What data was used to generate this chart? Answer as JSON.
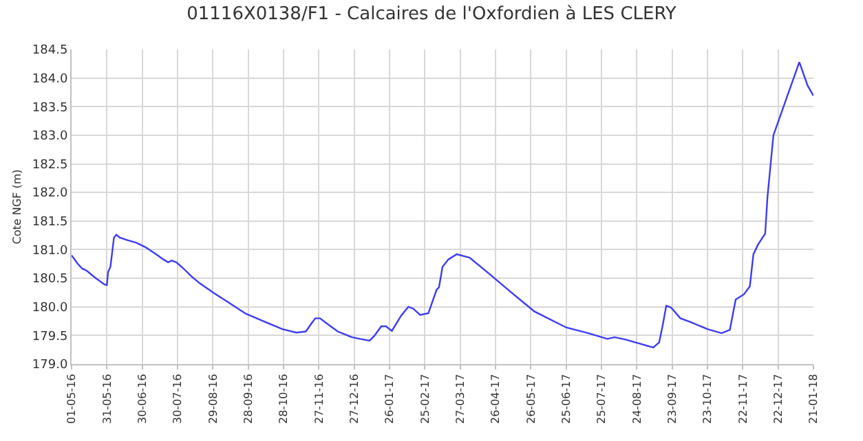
{
  "chart_data": {
    "type": "line",
    "title": "01116X0138/F1 - Calcaires de l'Oxfordien à LES CLERY",
    "ylabel": "Cote NGF (m)",
    "x": [
      "2016-05-01",
      "2016-05-06",
      "2016-05-10",
      "2016-05-14",
      "2016-05-21",
      "2016-05-29",
      "2016-05-31",
      "2016-06-01",
      "2016-06-03",
      "2016-06-06",
      "2016-06-08",
      "2016-06-11",
      "2016-06-17",
      "2016-06-25",
      "2016-07-03",
      "2016-07-11",
      "2016-07-18",
      "2016-07-22",
      "2016-07-25",
      "2016-07-29",
      "2016-08-03",
      "2016-08-11",
      "2016-08-18",
      "2016-08-30",
      "2016-09-11",
      "2016-09-26",
      "2016-10-12",
      "2016-10-27",
      "2016-11-08",
      "2016-11-16",
      "2016-11-20",
      "2016-11-24",
      "2016-11-28",
      "2016-12-05",
      "2016-12-13",
      "2016-12-25",
      "2017-01-01",
      "2017-01-09",
      "2017-01-13",
      "2017-01-19",
      "2017-01-23",
      "2017-01-28",
      "2017-02-05",
      "2017-02-11",
      "2017-02-15",
      "2017-02-21",
      "2017-02-28",
      "2017-03-07",
      "2017-03-09",
      "2017-03-12",
      "2017-03-17",
      "2017-03-24",
      "2017-04-04",
      "2017-04-20",
      "2017-05-09",
      "2017-05-29",
      "2017-06-25",
      "2017-07-14",
      "2017-07-30",
      "2017-08-05",
      "2017-08-14",
      "2017-09-07",
      "2017-09-12",
      "2017-09-15",
      "2017-09-18",
      "2017-09-22",
      "2017-09-30",
      "2017-10-08",
      "2017-10-23",
      "2017-11-04",
      "2017-11-11",
      "2017-11-16",
      "2017-11-23",
      "2017-11-28",
      "2017-12-01",
      "2017-12-05",
      "2017-12-11",
      "2017-12-13",
      "2017-12-18",
      "2018-01-09",
      "2018-01-16",
      "2018-01-21"
    ],
    "series": [
      {
        "color": "#3b3bf5",
        "values": [
          180.9,
          180.76,
          180.67,
          180.63,
          180.51,
          180.39,
          180.38,
          180.61,
          180.7,
          181.21,
          181.26,
          181.21,
          181.17,
          181.12,
          181.04,
          180.93,
          180.83,
          180.78,
          180.81,
          180.78,
          180.69,
          180.53,
          180.41,
          180.24,
          180.08,
          179.88,
          179.74,
          179.61,
          179.55,
          179.57,
          179.69,
          179.8,
          179.8,
          179.69,
          179.57,
          179.47,
          179.44,
          179.41,
          179.49,
          179.66,
          179.66,
          179.58,
          179.85,
          180.0,
          179.97,
          179.86,
          179.89,
          180.3,
          180.34,
          180.7,
          180.83,
          180.92,
          180.86,
          180.59,
          180.26,
          179.92,
          179.64,
          179.54,
          179.44,
          179.47,
          179.43,
          179.29,
          179.38,
          179.68,
          180.02,
          179.99,
          179.8,
          179.74,
          179.61,
          179.54,
          179.6,
          180.13,
          180.22,
          180.36,
          180.92,
          181.09,
          181.28,
          181.93,
          183.0,
          184.28,
          183.87,
          183.69
        ]
      }
    ],
    "xlim": [
      "2016-05-01",
      "2018-01-21"
    ],
    "xticks": [
      {
        "value": "2016-05-01",
        "label": "01-05-16"
      },
      {
        "value": "2016-05-31",
        "label": "31-05-16"
      },
      {
        "value": "2016-06-30",
        "label": "30-06-16"
      },
      {
        "value": "2016-07-30",
        "label": "30-07-16"
      },
      {
        "value": "2016-08-29",
        "label": "29-08-16"
      },
      {
        "value": "2016-09-28",
        "label": "28-09-16"
      },
      {
        "value": "2016-10-28",
        "label": "28-10-16"
      },
      {
        "value": "2016-11-27",
        "label": "27-11-16"
      },
      {
        "value": "2016-12-27",
        "label": "27-12-16"
      },
      {
        "value": "2017-01-26",
        "label": "26-01-17"
      },
      {
        "value": "2017-02-25",
        "label": "25-02-17"
      },
      {
        "value": "2017-03-27",
        "label": "27-03-17"
      },
      {
        "value": "2017-04-26",
        "label": "26-04-17"
      },
      {
        "value": "2017-05-26",
        "label": "26-05-17"
      },
      {
        "value": "2017-06-25",
        "label": "25-06-17"
      },
      {
        "value": "2017-07-25",
        "label": "25-07-17"
      },
      {
        "value": "2017-08-24",
        "label": "24-08-17"
      },
      {
        "value": "2017-09-23",
        "label": "23-09-17"
      },
      {
        "value": "2017-10-23",
        "label": "23-10-17"
      },
      {
        "value": "2017-11-22",
        "label": "22-11-17"
      },
      {
        "value": "2017-12-22",
        "label": "22-12-17"
      },
      {
        "value": "2018-01-21",
        "label": "21-01-18"
      }
    ],
    "ylim": [
      179.0,
      184.5
    ],
    "yticks": [
      {
        "value": 179.0,
        "label": "179.0"
      },
      {
        "value": 179.5,
        "label": "179.5"
      },
      {
        "value": 180.0,
        "label": "180.0"
      },
      {
        "value": 180.5,
        "label": "180.5"
      },
      {
        "value": 181.0,
        "label": "181.0"
      },
      {
        "value": 181.5,
        "label": "181.5"
      },
      {
        "value": 182.0,
        "label": "182.0"
      },
      {
        "value": 182.5,
        "label": "182.5"
      },
      {
        "value": 183.0,
        "label": "183.0"
      },
      {
        "value": 183.5,
        "label": "183.5"
      },
      {
        "value": 184.0,
        "label": "184.0"
      },
      {
        "value": 184.5,
        "label": "184.5"
      }
    ],
    "grid": true,
    "legend": false,
    "marker": "none",
    "line_style": "solid"
  }
}
